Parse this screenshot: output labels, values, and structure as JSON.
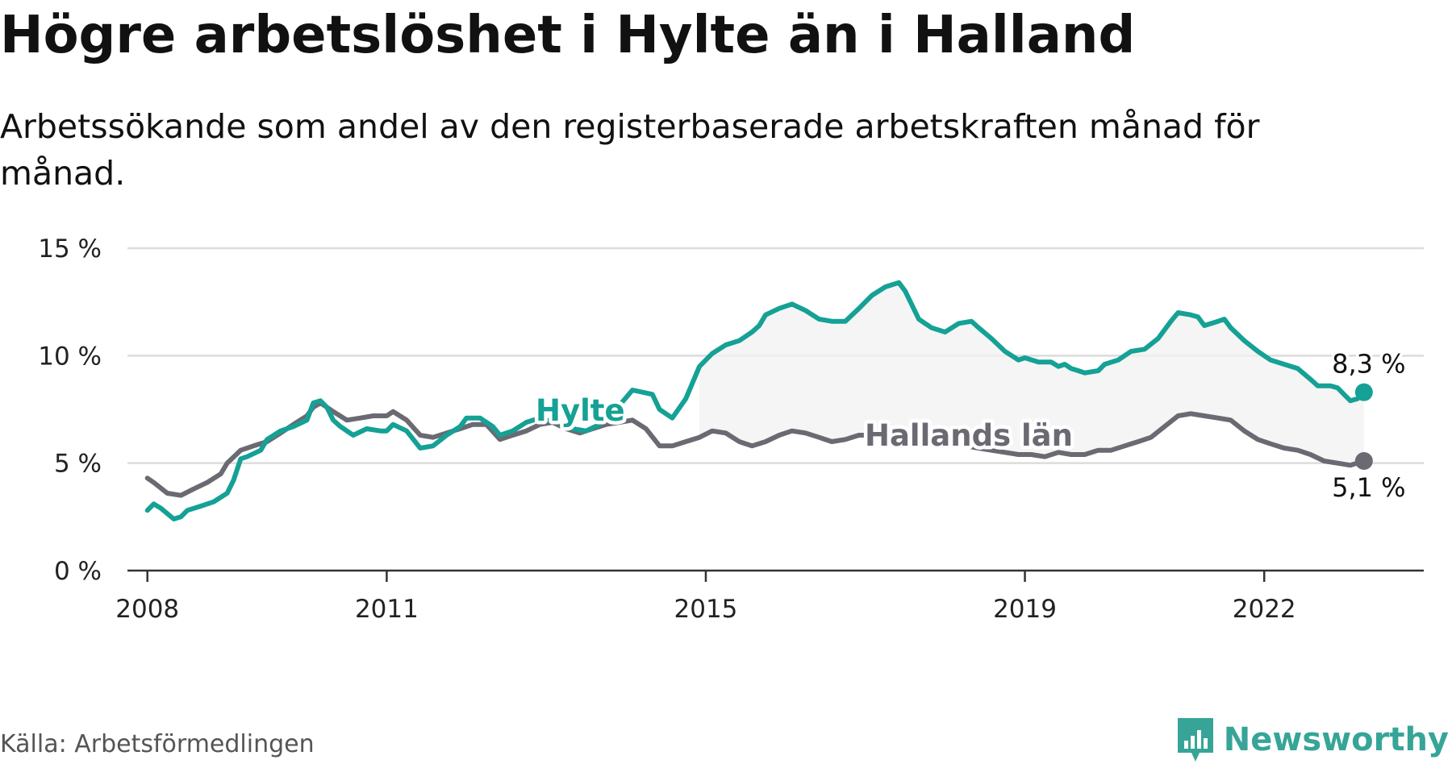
{
  "title": "Högre arbetslöshet i Hylte än i Halland",
  "subtitle": "Arbetssökande som andel av den registerbaserade arbetskraften månad för månad.",
  "source": "Källa: Arbetsförmedlingen",
  "brand": {
    "name": "Newsworthy",
    "icon": "newsworthy-logo-icon",
    "color": "#36a597"
  },
  "chart_data": {
    "type": "line",
    "ylim": [
      0,
      15
    ],
    "y_ticks": [
      {
        "value": 0,
        "label": "0 %"
      },
      {
        "value": 5,
        "label": "5 %"
      },
      {
        "value": 10,
        "label": "10 %"
      },
      {
        "value": 15,
        "label": "15 %"
      }
    ],
    "x_ticks": [
      {
        "value": 2008,
        "label": "2008"
      },
      {
        "value": 2011,
        "label": "2011"
      },
      {
        "value": 2015,
        "label": "2015"
      },
      {
        "value": 2019,
        "label": "2019"
      },
      {
        "value": 2022,
        "label": "2022"
      }
    ],
    "grid": true,
    "shade_between": true,
    "series": [
      {
        "name": "Hylte",
        "color": "#15a195",
        "end_label": "8,3 %",
        "points": [
          [
            2008.0,
            2.8
          ],
          [
            2008.08,
            3.1
          ],
          [
            2008.17,
            2.9
          ],
          [
            2008.33,
            2.4
          ],
          [
            2008.42,
            2.5
          ],
          [
            2008.5,
            2.8
          ],
          [
            2008.67,
            3.0
          ],
          [
            2008.83,
            3.2
          ],
          [
            2009.0,
            3.6
          ],
          [
            2009.08,
            4.2
          ],
          [
            2009.17,
            5.2
          ],
          [
            2009.25,
            5.3
          ],
          [
            2009.42,
            5.6
          ],
          [
            2009.5,
            6.1
          ],
          [
            2009.67,
            6.5
          ],
          [
            2009.83,
            6.7
          ],
          [
            2010.0,
            7.0
          ],
          [
            2010.08,
            7.8
          ],
          [
            2010.17,
            7.9
          ],
          [
            2010.25,
            7.6
          ],
          [
            2010.33,
            7.0
          ],
          [
            2010.42,
            6.7
          ],
          [
            2010.58,
            6.3
          ],
          [
            2010.75,
            6.6
          ],
          [
            2010.92,
            6.5
          ],
          [
            2011.0,
            6.5
          ],
          [
            2011.08,
            6.8
          ],
          [
            2011.25,
            6.5
          ],
          [
            2011.42,
            5.7
          ],
          [
            2011.58,
            5.8
          ],
          [
            2011.75,
            6.3
          ],
          [
            2011.92,
            6.7
          ],
          [
            2012.0,
            7.1
          ],
          [
            2012.17,
            7.1
          ],
          [
            2012.33,
            6.7
          ],
          [
            2012.42,
            6.3
          ],
          [
            2012.58,
            6.5
          ],
          [
            2012.75,
            6.9
          ],
          [
            2012.92,
            7.1
          ],
          [
            2013.0,
            7.0
          ],
          [
            2013.17,
            6.9
          ],
          [
            2013.33,
            6.6
          ],
          [
            2013.5,
            6.5
          ],
          [
            2013.67,
            6.8
          ],
          [
            2013.83,
            7.4
          ],
          [
            2013.92,
            7.7
          ],
          [
            2014.08,
            8.4
          ],
          [
            2014.33,
            8.2
          ],
          [
            2014.42,
            7.5
          ],
          [
            2014.58,
            7.1
          ],
          [
            2014.75,
            8.0
          ],
          [
            2014.92,
            9.5
          ],
          [
            2015.08,
            10.1
          ],
          [
            2015.25,
            10.5
          ],
          [
            2015.42,
            10.7
          ],
          [
            2015.58,
            11.1
          ],
          [
            2015.67,
            11.4
          ],
          [
            2015.75,
            11.9
          ],
          [
            2015.92,
            12.2
          ],
          [
            2016.08,
            12.4
          ],
          [
            2016.25,
            12.1
          ],
          [
            2016.42,
            11.7
          ],
          [
            2016.58,
            11.6
          ],
          [
            2016.75,
            11.6
          ],
          [
            2016.92,
            12.2
          ],
          [
            2017.08,
            12.8
          ],
          [
            2017.25,
            13.2
          ],
          [
            2017.42,
            13.4
          ],
          [
            2017.5,
            13.0
          ],
          [
            2017.67,
            11.7
          ],
          [
            2017.83,
            11.3
          ],
          [
            2018.0,
            11.1
          ],
          [
            2018.17,
            11.5
          ],
          [
            2018.33,
            11.6
          ],
          [
            2018.42,
            11.3
          ],
          [
            2018.58,
            10.8
          ],
          [
            2018.75,
            10.2
          ],
          [
            2018.92,
            9.8
          ],
          [
            2019.0,
            9.9
          ],
          [
            2019.17,
            9.7
          ],
          [
            2019.33,
            9.7
          ],
          [
            2019.42,
            9.5
          ],
          [
            2019.5,
            9.6
          ],
          [
            2019.58,
            9.4
          ],
          [
            2019.67,
            9.3
          ],
          [
            2019.75,
            9.2
          ],
          [
            2019.92,
            9.3
          ],
          [
            2020.0,
            9.6
          ],
          [
            2020.17,
            9.8
          ],
          [
            2020.33,
            10.2
          ],
          [
            2020.5,
            10.3
          ],
          [
            2020.67,
            10.8
          ],
          [
            2020.83,
            11.6
          ],
          [
            2020.92,
            12.0
          ],
          [
            2021.08,
            11.9
          ],
          [
            2021.17,
            11.8
          ],
          [
            2021.25,
            11.4
          ],
          [
            2021.42,
            11.6
          ],
          [
            2021.5,
            11.7
          ],
          [
            2021.58,
            11.3
          ],
          [
            2021.75,
            10.7
          ],
          [
            2021.92,
            10.2
          ],
          [
            2022.08,
            9.8
          ],
          [
            2022.25,
            9.6
          ],
          [
            2022.42,
            9.4
          ],
          [
            2022.58,
            8.9
          ],
          [
            2022.67,
            8.6
          ],
          [
            2022.83,
            8.6
          ],
          [
            2022.92,
            8.5
          ],
          [
            2023.08,
            7.9
          ],
          [
            2023.17,
            8.0
          ],
          [
            2023.25,
            8.3
          ]
        ]
      },
      {
        "name": "Hallands län",
        "color": "#6b6a73",
        "end_label": "5,1 %",
        "points": [
          [
            2008.0,
            4.3
          ],
          [
            2008.08,
            4.1
          ],
          [
            2008.25,
            3.6
          ],
          [
            2008.42,
            3.5
          ],
          [
            2008.58,
            3.8
          ],
          [
            2008.75,
            4.1
          ],
          [
            2008.92,
            4.5
          ],
          [
            2009.0,
            5.0
          ],
          [
            2009.17,
            5.6
          ],
          [
            2009.33,
            5.8
          ],
          [
            2009.5,
            6.0
          ],
          [
            2009.67,
            6.4
          ],
          [
            2009.83,
            6.8
          ],
          [
            2010.0,
            7.2
          ],
          [
            2010.08,
            7.6
          ],
          [
            2010.17,
            7.8
          ],
          [
            2010.33,
            7.4
          ],
          [
            2010.5,
            7.0
          ],
          [
            2010.67,
            7.1
          ],
          [
            2010.83,
            7.2
          ],
          [
            2011.0,
            7.2
          ],
          [
            2011.08,
            7.4
          ],
          [
            2011.25,
            7.0
          ],
          [
            2011.42,
            6.3
          ],
          [
            2011.58,
            6.2
          ],
          [
            2011.75,
            6.4
          ],
          [
            2011.92,
            6.6
          ],
          [
            2012.08,
            6.8
          ],
          [
            2012.25,
            6.8
          ],
          [
            2012.42,
            6.1
          ],
          [
            2012.58,
            6.3
          ],
          [
            2012.75,
            6.5
          ],
          [
            2012.92,
            6.8
          ],
          [
            2013.08,
            6.9
          ],
          [
            2013.25,
            6.6
          ],
          [
            2013.42,
            6.4
          ],
          [
            2013.58,
            6.6
          ],
          [
            2013.75,
            6.8
          ],
          [
            2013.92,
            6.9
          ],
          [
            2014.08,
            7.0
          ],
          [
            2014.25,
            6.6
          ],
          [
            2014.42,
            5.8
          ],
          [
            2014.58,
            5.8
          ],
          [
            2014.75,
            6.0
          ],
          [
            2014.92,
            6.2
          ],
          [
            2015.08,
            6.5
          ],
          [
            2015.25,
            6.4
          ],
          [
            2015.42,
            6.0
          ],
          [
            2015.58,
            5.8
          ],
          [
            2015.75,
            6.0
          ],
          [
            2015.92,
            6.3
          ],
          [
            2016.08,
            6.5
          ],
          [
            2016.25,
            6.4
          ],
          [
            2016.42,
            6.2
          ],
          [
            2016.58,
            6.0
          ],
          [
            2016.75,
            6.1
          ],
          [
            2016.92,
            6.3
          ],
          [
            2017.08,
            6.3
          ],
          [
            2017.25,
            6.5
          ],
          [
            2017.42,
            6.4
          ],
          [
            2017.58,
            6.2
          ],
          [
            2017.75,
            6.1
          ],
          [
            2017.92,
            6.0
          ],
          [
            2018.08,
            5.9
          ],
          [
            2018.25,
            5.8
          ],
          [
            2018.42,
            5.7
          ],
          [
            2018.58,
            5.6
          ],
          [
            2018.75,
            5.5
          ],
          [
            2018.92,
            5.4
          ],
          [
            2019.08,
            5.4
          ],
          [
            2019.25,
            5.3
          ],
          [
            2019.42,
            5.5
          ],
          [
            2019.58,
            5.4
          ],
          [
            2019.75,
            5.4
          ],
          [
            2019.92,
            5.6
          ],
          [
            2020.08,
            5.6
          ],
          [
            2020.25,
            5.8
          ],
          [
            2020.42,
            6.0
          ],
          [
            2020.58,
            6.2
          ],
          [
            2020.75,
            6.7
          ],
          [
            2020.92,
            7.2
          ],
          [
            2021.08,
            7.3
          ],
          [
            2021.25,
            7.2
          ],
          [
            2021.42,
            7.1
          ],
          [
            2021.58,
            7.0
          ],
          [
            2021.75,
            6.5
          ],
          [
            2021.92,
            6.1
          ],
          [
            2022.08,
            5.9
          ],
          [
            2022.25,
            5.7
          ],
          [
            2022.42,
            5.6
          ],
          [
            2022.58,
            5.4
          ],
          [
            2022.75,
            5.1
          ],
          [
            2022.92,
            5.0
          ],
          [
            2023.08,
            4.9
          ],
          [
            2023.25,
            5.1
          ]
        ]
      }
    ]
  }
}
